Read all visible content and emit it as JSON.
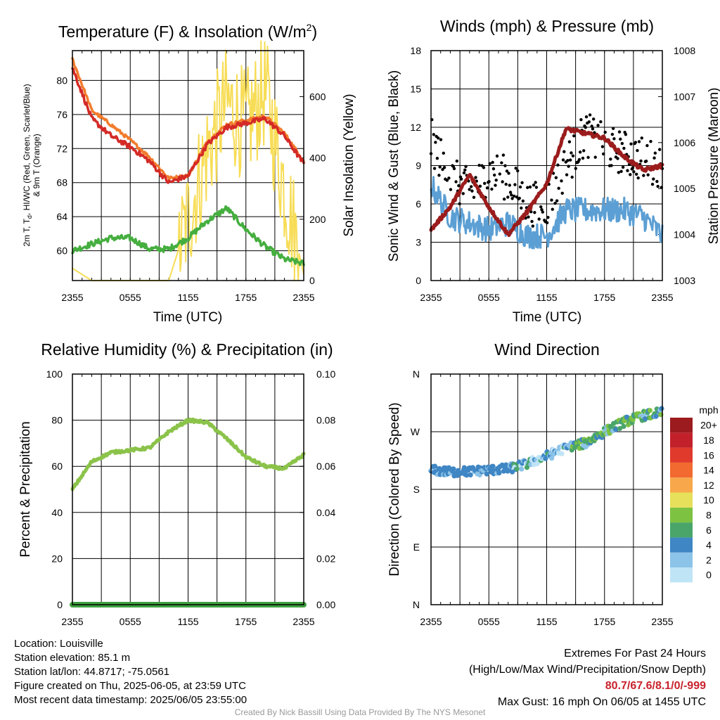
{
  "panels": {
    "temp": {
      "title": "Temperature (F) & Insolation (W/m",
      "title_sup": "2",
      "title_end": ")",
      "ylabel_line1": "2m T, T",
      "ylabel_sub": "d",
      "ylabel_line1b": ", HI/WC (Red, Green, Scarlet/Blue)",
      "ylabel_line2": "& 9m T (Orange)",
      "ylabel_right": "Solar Insolation (Yellow)",
      "xlabel": "Time (UTC)"
    },
    "wind": {
      "title": "Winds (mph) & Pressure (mb)",
      "ylabel_left": "Sonic Wind & Gust (Blue, Black)",
      "ylabel_right": "Station Pressure (Maroon)",
      "xlabel": "Time (UTC)"
    },
    "rh": {
      "title": "Relative Humidity (%) & Precipitation (in)",
      "ylabel_left": "Percent & Precipitation"
    },
    "dir": {
      "title": "Wind Direction",
      "ylabel_left": "Direction (Colored By Speed)",
      "legend_title": "mph"
    }
  },
  "info": {
    "location": "Location: Louisville",
    "elevation": "Station elevation: 85.1 m",
    "latlon": "Station lat/lon: 44.8717; -75.0561",
    "created": "Figure created on Thu, 2025-06-05, at 23:59 UTC",
    "recent": "Most recent data timestamp: 2025/06/05 23:55:00"
  },
  "extremes": {
    "line1": "Extremes For Past 24 Hours",
    "line2": "(High/Low/Max Wind/Precipitation/Snow Depth)",
    "values": "80.7/67.6/8.1/0/-999",
    "gust": "Max Gust: 16 mph On 06/05 at 1455 UTC"
  },
  "credit": "Created By Nick Bassill Using Data Provided By The NYS Mesonet",
  "colors": {
    "temperature": "#d42a26",
    "temp_9m": "#f27c2c",
    "dewpoint": "#45ae3f",
    "insolation": "#f7dd57",
    "wind": "#5b9fd4",
    "gust": "#000000",
    "pressure": "#9b1c1c",
    "rh": "#8bc34a",
    "precip": "#3fa13f"
  },
  "chart_data": [
    {
      "type": "line",
      "title": "Temperature (F) & Insolation (W/m2)",
      "xlabel": "Time (UTC)",
      "ylabel": "2m T, Td, HI/WC (Red, Green, Scarlet/Blue) & 9m T (Orange)",
      "y2label": "Solar Insolation (Yellow)",
      "x_ticks": [
        "2355",
        "0555",
        "1155",
        "1755",
        "2355"
      ],
      "ylim": [
        56.5,
        83.5
      ],
      "y_ticks": [
        60,
        64,
        68,
        72,
        76,
        80
      ],
      "y2lim": [
        0,
        750
      ],
      "y2_ticks": [
        0,
        200,
        400,
        600
      ],
      "x": [
        "2355",
        "0155",
        "0355",
        "0555",
        "0755",
        "0955",
        "1155",
        "1355",
        "1555",
        "1755",
        "1955",
        "2155",
        "2355"
      ],
      "series": [
        {
          "name": "2m T",
          "axis": "left",
          "values": [
            81.5,
            75.5,
            73.5,
            72.2,
            70.5,
            68.0,
            68.8,
            72.5,
            74.5,
            75.0,
            75.5,
            73.5,
            70.2
          ]
        },
        {
          "name": "9m T",
          "axis": "left",
          "values": [
            82.5,
            76.5,
            74.8,
            73.0,
            71.0,
            68.5,
            68.8,
            72.8,
            74.8,
            75.3,
            75.8,
            73.8,
            70.5
          ]
        },
        {
          "name": "Td",
          "axis": "left",
          "values": [
            60.0,
            60.8,
            61.5,
            61.5,
            60.2,
            60.2,
            61.5,
            63.5,
            65.0,
            62.5,
            60.5,
            59.0,
            58.5
          ]
        },
        {
          "name": "Solar Insolation",
          "axis": "right",
          "values": [
            40,
            0,
            0,
            0,
            0,
            0,
            200,
            420,
            580,
            500,
            620,
            300,
            20
          ]
        }
      ]
    },
    {
      "type": "line",
      "title": "Winds (mph) & Pressure (mb)",
      "xlabel": "Time (UTC)",
      "ylabel": "Sonic Wind & Gust (Blue, Black)",
      "y2label": "Station Pressure (Maroon)",
      "x_ticks": [
        "2355",
        "0555",
        "1155",
        "1755",
        "2355"
      ],
      "ylim": [
        0,
        18
      ],
      "y_ticks": [
        0,
        3,
        6,
        9,
        12,
        15,
        18
      ],
      "y2lim": [
        1003,
        1008
      ],
      "y2_ticks": [
        1003,
        1004,
        1005,
        1006,
        1007,
        1008
      ],
      "x": [
        "2355",
        "0155",
        "0355",
        "0555",
        "0755",
        "0955",
        "1155",
        "1355",
        "1555",
        "1755",
        "1955",
        "2155",
        "2355"
      ],
      "series": [
        {
          "name": "Sonic Wind",
          "axis": "left",
          "values": [
            7.5,
            5.0,
            4.5,
            4.0,
            4.5,
            3.5,
            3.5,
            5.5,
            5.5,
            5.5,
            5.5,
            5.0,
            3.5
          ]
        },
        {
          "name": "Gust",
          "axis": "left",
          "values": [
            11.0,
            8.0,
            7.0,
            8.5,
            8.0,
            6.0,
            6.0,
            9.0,
            11.5,
            10.5,
            10.0,
            9.5,
            9.0
          ]
        },
        {
          "name": "Station Pressure",
          "axis": "right",
          "values": [
            1004.1,
            1004.6,
            1005.3,
            1004.6,
            1004.0,
            1004.5,
            1005.1,
            1006.3,
            1006.2,
            1006.1,
            1005.7,
            1005.4,
            1005.5
          ]
        }
      ]
    },
    {
      "type": "line",
      "title": "Relative Humidity (%) & Precipitation (in)",
      "ylabel": "Percent & Precipitation",
      "x_ticks": [
        "2355",
        "0555",
        "1155",
        "1755",
        "2355"
      ],
      "ylim": [
        0,
        100
      ],
      "y_ticks": [
        0,
        20,
        40,
        60,
        80,
        100
      ],
      "y2lim": [
        0,
        0.1
      ],
      "y2_ticks": [
        "0.00",
        "0.02",
        "0.04",
        "0.06",
        "0.08",
        "0.10"
      ],
      "x": [
        "2355",
        "0155",
        "0355",
        "0555",
        "0755",
        "0955",
        "1155",
        "1355",
        "1555",
        "1755",
        "1955",
        "2155",
        "2355"
      ],
      "series": [
        {
          "name": "Relative Humidity",
          "axis": "left",
          "values": [
            50,
            62,
            66,
            67,
            68,
            75,
            80,
            79,
            72,
            64,
            60,
            59,
            65
          ]
        },
        {
          "name": "Precipitation",
          "axis": "right",
          "values": [
            0,
            0,
            0,
            0,
            0,
            0,
            0,
            0,
            0,
            0,
            0,
            0,
            0
          ]
        }
      ]
    },
    {
      "type": "scatter",
      "title": "Wind Direction",
      "ylabel": "Direction (Colored By Speed)",
      "x_ticks": [
        "2355",
        "0555",
        "1155",
        "1755",
        "2355"
      ],
      "y_ticks": [
        "N",
        "E",
        "S",
        "W",
        "N"
      ],
      "ylim": [
        0,
        360
      ],
      "colorbar": {
        "title": "mph",
        "labels": [
          "0",
          "2",
          "4",
          "6",
          "8",
          "10",
          "12",
          "14",
          "16",
          "18",
          "20+"
        ],
        "colors": [
          "#bfe4f6",
          "#8cc3e8",
          "#3f86c4",
          "#4aa56a",
          "#7ec242",
          "#e6e05a",
          "#f8a84a",
          "#f26a2f",
          "#e03a2c",
          "#c2202a",
          "#9b1b1f"
        ]
      },
      "x": [
        "2355",
        "0155",
        "0355",
        "0555",
        "0755",
        "0955",
        "1155",
        "1355",
        "1555",
        "1755",
        "1955",
        "2155",
        "2355"
      ],
      "values": [
        210,
        207,
        208,
        210,
        212,
        220,
        232,
        245,
        252,
        270,
        285,
        295,
        300
      ]
    }
  ]
}
